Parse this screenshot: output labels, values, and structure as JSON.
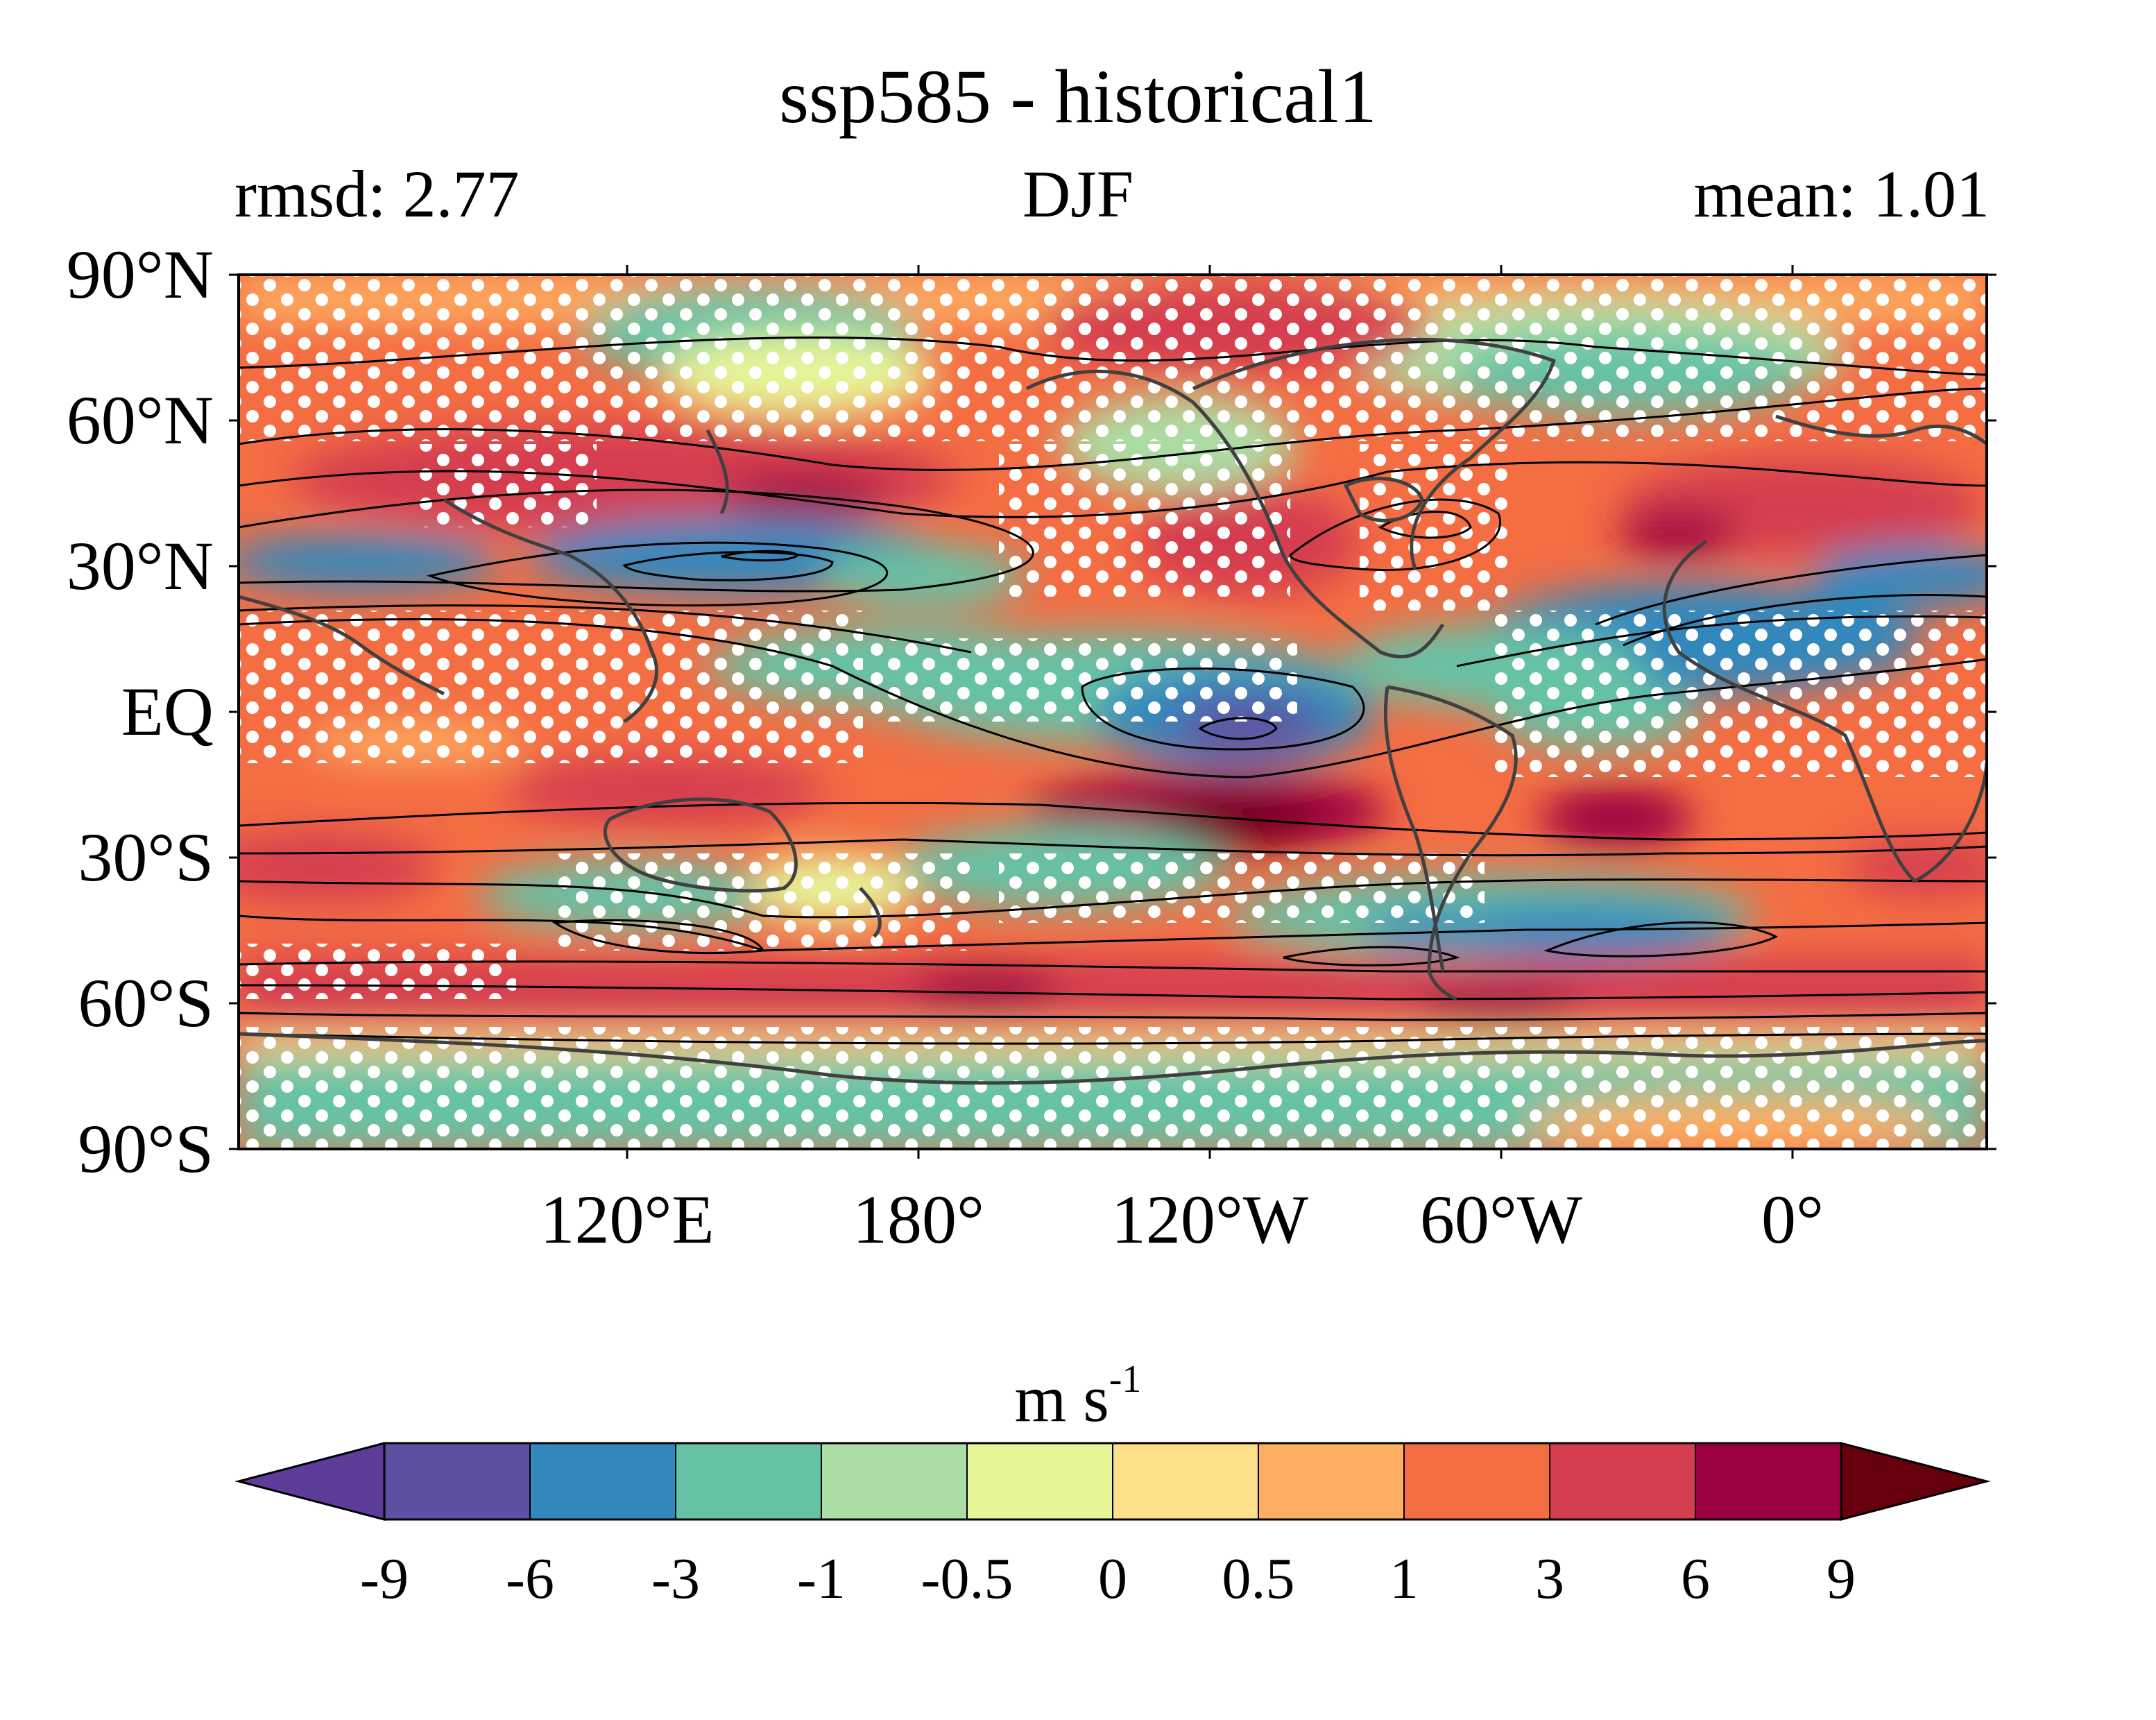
{
  "title": "ssp585 - historical1",
  "subtitle_left": "rmsd: 2.77",
  "subtitle_center": "DJF",
  "subtitle_right": "mean: 1.01",
  "map": {
    "lat_labels": [
      "90°N",
      "60°N",
      "30°N",
      "EQ",
      "30°S",
      "60°S",
      "90°S"
    ],
    "lon_labels": [
      "120°E",
      "180°",
      "120°W",
      "60°W",
      "0°"
    ],
    "extent": {
      "lon_min": 40,
      "lon_max": 400,
      "lat_min": -90,
      "lat_max": 90
    },
    "layers": [
      "filled anomaly contours",
      "black climatology contour lines",
      "white significance stippling",
      "grey coastlines"
    ]
  },
  "colorbar": {
    "unit": "m s",
    "unit_exponent": "-1",
    "levels": [
      "-9",
      "-6",
      "-3",
      "-1",
      "-0.5",
      "0",
      "0.5",
      "1",
      "3",
      "6",
      "9"
    ],
    "colors": [
      "#5e3c99",
      "#5e4fa2",
      "#3288bd",
      "#66c2a5",
      "#abdda4",
      "#e6f598",
      "#fee08b",
      "#fdae61",
      "#f46d43",
      "#d53e4f",
      "#9e0142",
      "#67000d"
    ],
    "extend": "both"
  }
}
